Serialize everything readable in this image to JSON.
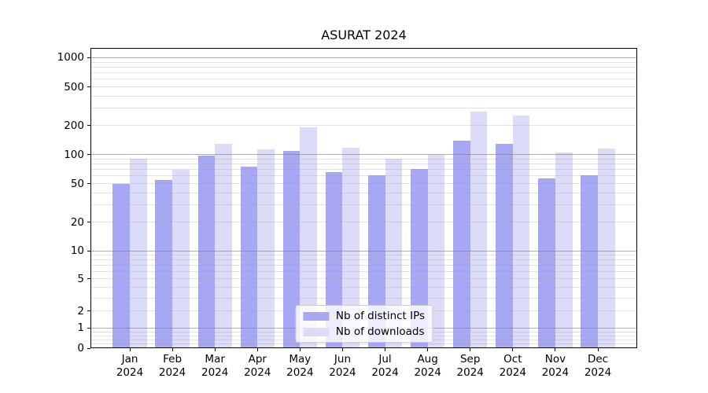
{
  "chart_data": {
    "type": "bar",
    "title": "ASURAT 2024",
    "categories": [
      "Jan",
      "Feb",
      "Mar",
      "Apr",
      "May",
      "Jun",
      "Jul",
      "Aug",
      "Sep",
      "Oct",
      "Nov",
      "Dec"
    ],
    "x_year_label": "2024",
    "series": [
      {
        "name": "Nb of distinct IPs",
        "color": "#a7a7f3",
        "values": [
          50,
          55,
          97,
          75,
          110,
          66,
          61,
          71,
          140,
          130,
          57,
          61
        ]
      },
      {
        "name": "Nb of downloads",
        "color": "#dcdcf9",
        "values": [
          90,
          70,
          130,
          113,
          190,
          117,
          90,
          99,
          280,
          252,
          105,
          115
        ]
      }
    ],
    "yscale": "asinh",
    "asinh_linear_width": 2,
    "ylim": [
      0,
      1262
    ],
    "y_tick_labels": [
      0,
      1,
      2,
      5,
      10,
      20,
      50,
      100,
      200,
      500,
      1000
    ],
    "y_major_grid": [
      1,
      10,
      100,
      1000
    ],
    "y_minor_grid": [
      0.2,
      0.4,
      0.6,
      0.8,
      2,
      3,
      4,
      5,
      6,
      7,
      8,
      9,
      20,
      30,
      40,
      50,
      60,
      70,
      80,
      90,
      200,
      300,
      400,
      500,
      600,
      700,
      800,
      900
    ],
    "grid": true,
    "legend_position": "lower center",
    "bar_width_fraction": 0.4,
    "colors": {
      "major_grid": "rgba(128,128,128,0.62)",
      "minor_grid": "rgba(160,160,160,0.3)",
      "spine": "#000000",
      "text": "#000000",
      "background": "#ffffff"
    }
  }
}
